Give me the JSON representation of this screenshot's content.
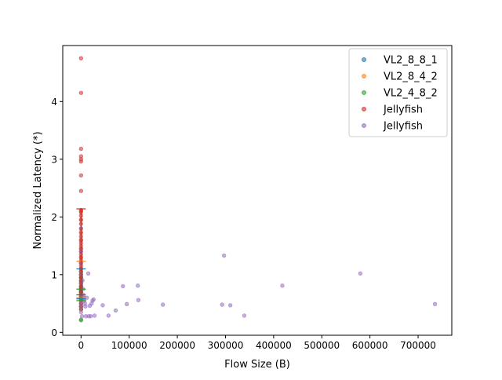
{
  "chart_data": {
    "type": "scatter",
    "title": "",
    "xlabel": "Flow Size (B)",
    "ylabel": "Normalized Latency (*)",
    "xlim": [
      -38000,
      770000
    ],
    "ylim": [
      -0.05,
      4.97
    ],
    "xticks": [
      0,
      100000,
      200000,
      300000,
      400000,
      500000,
      600000,
      700000
    ],
    "xtick_labels": [
      "0",
      "100000",
      "200000",
      "300000",
      "400000",
      "500000",
      "600000",
      "700000"
    ],
    "yticks": [
      0,
      1,
      2,
      3,
      4
    ],
    "ytick_labels": [
      "0",
      "1",
      "2",
      "3",
      "4"
    ],
    "grid": false,
    "legend": "top-right",
    "series": [
      {
        "name": "VL2_8_8_1",
        "color": "#1f77b4",
        "points": [
          [
            0,
            0.62
          ],
          [
            0,
            0.7
          ],
          [
            0,
            0.78
          ],
          [
            0,
            0.85
          ],
          [
            0,
            0.95
          ],
          [
            0,
            1.05
          ],
          [
            0,
            1.1
          ],
          [
            0,
            0.58
          ],
          [
            0,
            0.66
          ],
          [
            0,
            0.74
          ]
        ],
        "errorbar": {
          "x": 0,
          "low": 0.58,
          "high": 1.1
        }
      },
      {
        "name": "VL2_8_4_2",
        "color": "#ff7f0e",
        "points": [
          [
            0,
            0.6
          ],
          [
            0,
            0.7
          ],
          [
            0,
            0.8
          ],
          [
            0,
            0.9
          ],
          [
            0,
            1.0
          ],
          [
            0,
            1.1
          ],
          [
            0,
            1.2
          ],
          [
            0,
            1.3
          ],
          [
            0,
            1.45
          ],
          [
            0,
            1.6
          ],
          [
            0,
            1.75
          ],
          [
            0,
            1.95
          ],
          [
            0,
            2.1
          ],
          [
            0,
            0.45
          ]
        ],
        "errorbar": {
          "x": 0,
          "low": 0.6,
          "high": 1.23
        }
      },
      {
        "name": "VL2_4_8_2",
        "color": "#2ca02c",
        "points": [
          [
            0,
            0.21
          ],
          [
            0,
            0.22
          ],
          [
            0,
            0.4
          ],
          [
            0,
            0.45
          ],
          [
            0,
            0.5
          ],
          [
            0,
            0.55
          ],
          [
            0,
            0.58
          ],
          [
            0,
            0.6
          ],
          [
            0,
            0.64
          ],
          [
            0,
            0.68
          ],
          [
            0,
            0.72
          ],
          [
            0,
            0.76
          ],
          [
            0,
            0.8
          ],
          [
            0,
            0.88
          ],
          [
            0,
            0.95
          ],
          [
            0,
            1.0
          ]
        ],
        "errorbar": {
          "x": 0,
          "low": 0.55,
          "high": 0.75
        }
      },
      {
        "name": "Jellyfish",
        "color": "#d62728",
        "points": [
          [
            0,
            4.75
          ],
          [
            0,
            4.15
          ],
          [
            0,
            3.18
          ],
          [
            0,
            3.05
          ],
          [
            0,
            3.0
          ],
          [
            0,
            2.96
          ],
          [
            0,
            2.72
          ],
          [
            0,
            2.45
          ],
          [
            0,
            2.12
          ],
          [
            0,
            2.08
          ],
          [
            0,
            2.02
          ],
          [
            0,
            1.95
          ],
          [
            0,
            1.88
          ],
          [
            0,
            1.8
          ],
          [
            0,
            1.72
          ],
          [
            0,
            1.66
          ],
          [
            0,
            1.6
          ],
          [
            0,
            1.55
          ],
          [
            0,
            1.5
          ],
          [
            0,
            1.45
          ],
          [
            0,
            1.4
          ],
          [
            0,
            1.35
          ],
          [
            0,
            1.3
          ],
          [
            0,
            1.25
          ],
          [
            0,
            1.2
          ],
          [
            0,
            1.15
          ],
          [
            0,
            1.1
          ],
          [
            0,
            1.05
          ],
          [
            0,
            1.0
          ],
          [
            0,
            0.95
          ],
          [
            0,
            0.9
          ],
          [
            0,
            0.85
          ],
          [
            0,
            0.8
          ],
          [
            0,
            0.75
          ],
          [
            0,
            0.7
          ],
          [
            0,
            0.65
          ],
          [
            0,
            0.6
          ],
          [
            0,
            0.55
          ],
          [
            0,
            0.5
          ],
          [
            0,
            0.45
          ],
          [
            0,
            0.4
          ]
        ],
        "errorbar": {
          "x": 0,
          "low": 0.65,
          "high": 2.14
        }
      },
      {
        "name": "Jellyfish",
        "color": "#9467bd",
        "points": [
          [
            0,
            1.8
          ],
          [
            0,
            1.4
          ],
          [
            0,
            1.2
          ],
          [
            0,
            1.0
          ],
          [
            0,
            0.85
          ],
          [
            0,
            0.65
          ],
          [
            0,
            0.55
          ],
          [
            0,
            0.45
          ],
          [
            0,
            0.35
          ],
          [
            2000,
            0.28
          ],
          [
            3000,
            0.9
          ],
          [
            4000,
            0.75
          ],
          [
            5000,
            0.65
          ],
          [
            6000,
            0.6
          ],
          [
            7000,
            0.55
          ],
          [
            8000,
            0.5
          ],
          [
            9000,
            0.45
          ],
          [
            10000,
            0.28
          ],
          [
            12000,
            0.6
          ],
          [
            15000,
            1.02
          ],
          [
            16000,
            0.28
          ],
          [
            18000,
            0.46
          ],
          [
            20000,
            0.28
          ],
          [
            22000,
            0.5
          ],
          [
            24000,
            0.55
          ],
          [
            26000,
            0.57
          ],
          [
            28000,
            0.29
          ],
          [
            45000,
            0.47
          ],
          [
            57000,
            0.29
          ],
          [
            72000,
            0.38
          ],
          [
            87000,
            0.8
          ],
          [
            95000,
            0.49
          ],
          [
            118000,
            0.81
          ],
          [
            119000,
            0.56
          ],
          [
            170000,
            0.48
          ],
          [
            293000,
            0.48
          ],
          [
            297000,
            1.33
          ],
          [
            310000,
            0.47
          ],
          [
            339000,
            0.29
          ],
          [
            418000,
            0.81
          ],
          [
            580000,
            1.02
          ],
          [
            735000,
            0.49
          ]
        ]
      }
    ]
  }
}
